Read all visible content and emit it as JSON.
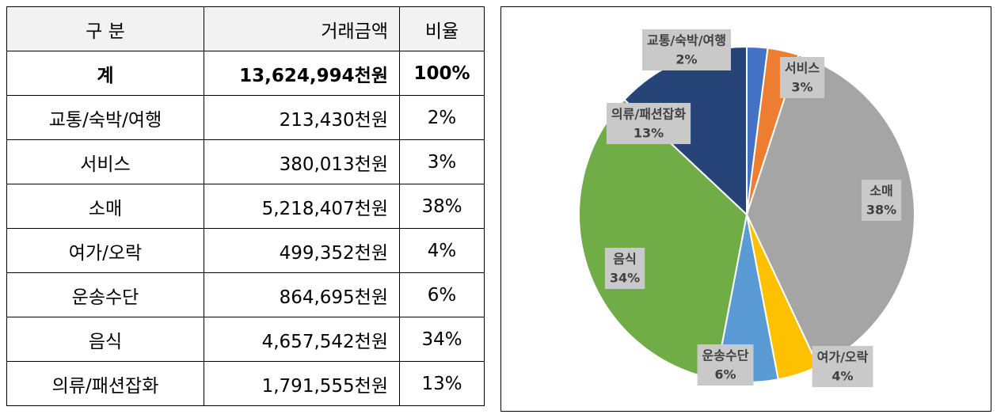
{
  "table": {
    "header": [
      "구 분",
      "거래금액",
      "비율"
    ],
    "rows": [
      [
        "계",
        "13,624,994천원",
        "100%"
      ],
      [
        "교통/숙박/여행",
        "213,430천원",
        "2%"
      ],
      [
        "서비스",
        "380,013천원",
        "3%"
      ],
      [
        "소매",
        "5,218,407천원",
        "38%"
      ],
      [
        "여가/오락",
        "499,352천원",
        "4%"
      ],
      [
        "운송수단",
        "864,695천원",
        "6%"
      ],
      [
        "음식",
        "4,657,542천원",
        "34%"
      ],
      [
        "의류/패션잡화",
        "1,791,555천원",
        "13%"
      ]
    ]
  },
  "chart_data": {
    "type": "pie",
    "categories": [
      "교통/숙박/여행",
      "서비스",
      "소매",
      "여가/오락",
      "운송수단",
      "음식",
      "의류/패션잡화"
    ],
    "values": [
      2,
      3,
      38,
      4,
      6,
      34,
      13
    ],
    "value_labels": [
      "2%",
      "3%",
      "38%",
      "4%",
      "6%",
      "34%",
      "13%"
    ],
    "colors": [
      "#4472c4",
      "#ed7d31",
      "#a5a5a5",
      "#ffc000",
      "#5b9bd5",
      "#70ad47",
      "#264478"
    ]
  }
}
